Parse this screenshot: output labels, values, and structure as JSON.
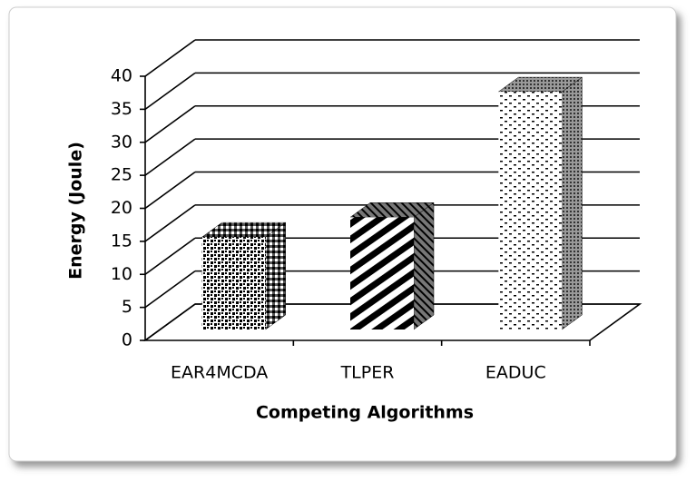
{
  "chart_data": {
    "type": "bar",
    "categories": [
      "EAR4MCDA",
      "TLPER",
      "EADUC"
    ],
    "values": [
      14,
      17,
      36
    ],
    "xlabel": "Competing Algorithms",
    "ylabel": "Energy (Joule)",
    "ylim": [
      0,
      40
    ],
    "yticks": [
      0,
      5,
      10,
      15,
      20,
      25,
      30,
      35,
      40
    ],
    "grid": true
  }
}
